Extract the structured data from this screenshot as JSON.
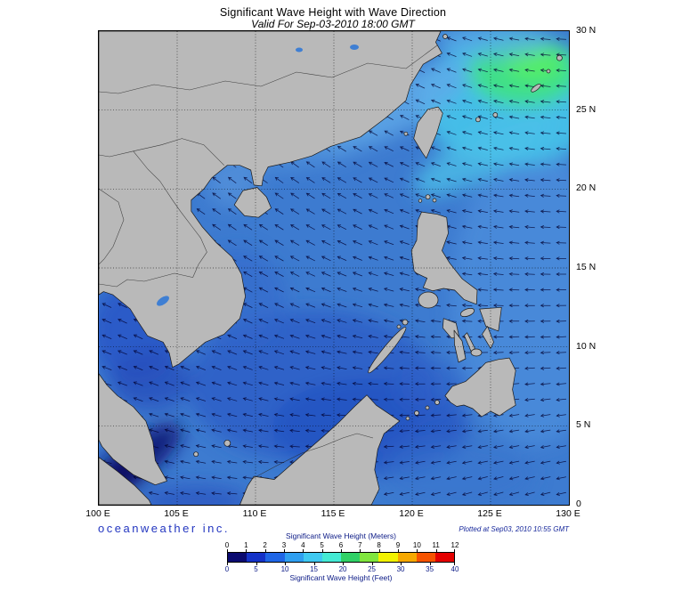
{
  "title": "Significant Wave Height with Wave Direction",
  "subtitle": "Valid For Sep-03-2010 18:00 GMT",
  "credits": {
    "organization": "oceanweather inc.",
    "plotted_at": "Plotted at Sep03, 2010 10:55 GMT"
  },
  "map": {
    "lat_labels": [
      "30 N",
      "25 N",
      "20 N",
      "15 N",
      "10 N",
      "5 N",
      "0"
    ],
    "lon_labels": [
      "100 E",
      "105 E",
      "110 E",
      "115 E",
      "120 E",
      "125 E",
      "130 E"
    ]
  },
  "legend": {
    "meters_label": "Significant Wave Height (Meters)",
    "feet_label": "Significant Wave Height (Feet)",
    "meters_ticks": [
      "0",
      "1",
      "2",
      "3",
      "4",
      "5",
      "6",
      "7",
      "8",
      "9",
      "10",
      "11",
      "12"
    ],
    "feet_ticks": [
      "0",
      "5",
      "10",
      "15",
      "20",
      "25",
      "30",
      "35",
      "40"
    ],
    "colors": [
      "#0a0a70",
      "#1432c8",
      "#1f66e6",
      "#2f9ff0",
      "#3fc9f1",
      "#44ead4",
      "#30d166",
      "#80e63e",
      "#f2f200",
      "#f6a800",
      "#f65300",
      "#e40000"
    ]
  },
  "chart_data": {
    "type": "heatmap",
    "title": "Significant Wave Height with Wave Direction",
    "valid_time": "Sep-03-2010 18:00 GMT",
    "plotted_time": "Sep03, 2010 10:55 GMT",
    "lon_range_deg_e": [
      100,
      130
    ],
    "lat_range_deg_n": [
      0,
      30
    ],
    "grid_interval_deg": 5,
    "colorbar_meters": [
      0,
      1,
      2,
      3,
      4,
      5,
      6,
      7,
      8,
      9,
      10,
      11,
      12
    ],
    "colorbar_feet": [
      0,
      5,
      10,
      15,
      20,
      25,
      30,
      35,
      40
    ],
    "units": [
      "Meters",
      "Feet"
    ]
  }
}
